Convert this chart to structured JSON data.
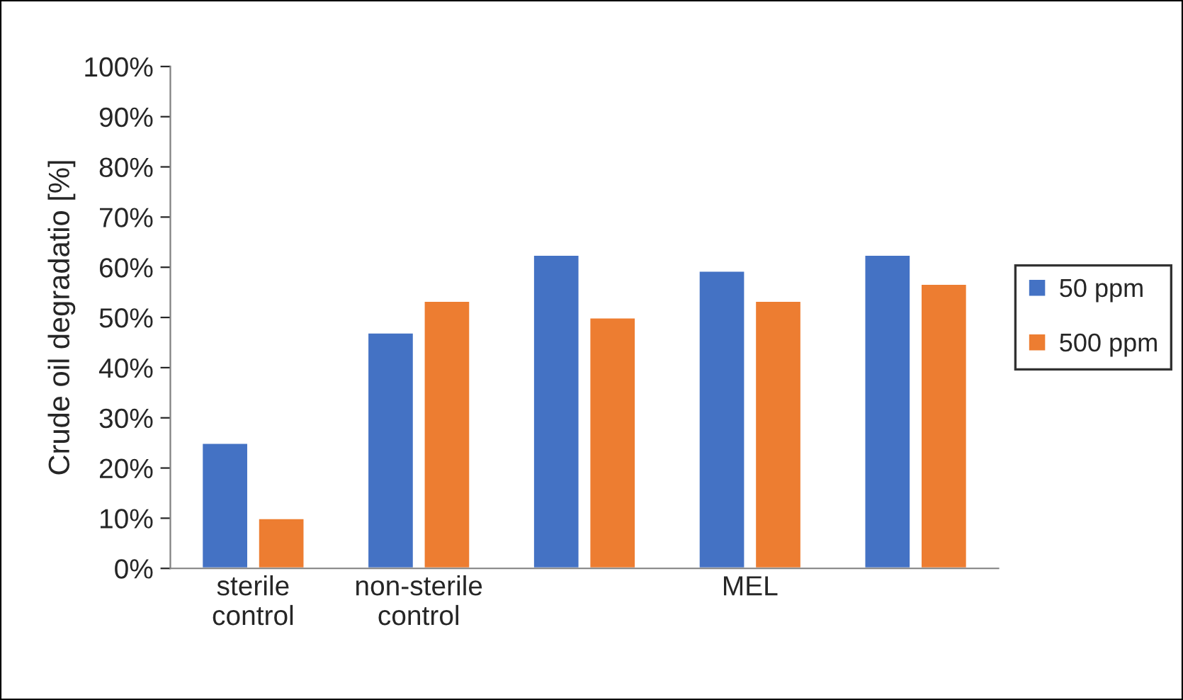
{
  "chart_data": {
    "type": "bar",
    "ylabel": "Crude oil degradatio [%]",
    "categories": [
      "sterile\ncontrol",
      "non-sterile\ncontrol",
      null,
      "MEL",
      null
    ],
    "series": [
      {
        "name": "50 ppm",
        "color": "#4472c4",
        "values": [
          25,
          47,
          62.5,
          59.3,
          62.5
        ]
      },
      {
        "name": "500 ppm",
        "color": "#ed7d31",
        "values": [
          10,
          53.3,
          50,
          53.3,
          56.7
        ]
      }
    ],
    "ylim": [
      0,
      100
    ],
    "yticks": [
      {
        "value": 0,
        "label": "0%"
      },
      {
        "value": 10,
        "label": "10%"
      },
      {
        "value": 20,
        "label": "20%"
      },
      {
        "value": 30,
        "label": "30%"
      },
      {
        "value": 40,
        "label": "40%"
      },
      {
        "value": 50,
        "label": "50%"
      },
      {
        "value": 60,
        "label": "60%"
      },
      {
        "value": 70,
        "label": "70%"
      },
      {
        "value": 80,
        "label": "80%"
      },
      {
        "value": 90,
        "label": "90%"
      },
      {
        "value": 100,
        "label": "100%"
      }
    ],
    "grid": false,
    "legend": "right"
  }
}
